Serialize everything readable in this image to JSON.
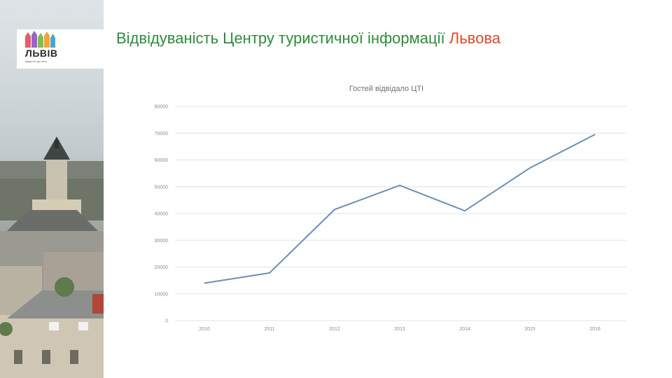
{
  "logo": {
    "wordmark": "ЛЬВІВ",
    "tagline": "відкрите до світу"
  },
  "title": {
    "main": "Відвідуваність Центру туристичної інформації",
    "accent": "Львова"
  },
  "colors": {
    "title": "#2e8b3c",
    "accent": "#d84a2b",
    "line": "#6a8fb5",
    "grid": "#e3e3e3"
  },
  "chart_data": {
    "type": "line",
    "title": "Гостей відвідало ЦТІ",
    "categories": [
      "2010",
      "2011",
      "2012",
      "2013",
      "2014",
      "2015",
      "2016"
    ],
    "values": [
      14000,
      17800,
      41500,
      50500,
      41000,
      57000,
      69500
    ],
    "ylim": [
      0,
      80000
    ],
    "yticks": [
      0,
      10000,
      20000,
      30000,
      40000,
      50000,
      60000,
      70000,
      80000
    ],
    "ytick_labels": [
      "0",
      "10000",
      "20000",
      "30000",
      "40000",
      "50000",
      "60000",
      "70000",
      "80000"
    ],
    "grid": true,
    "legend": "none"
  }
}
